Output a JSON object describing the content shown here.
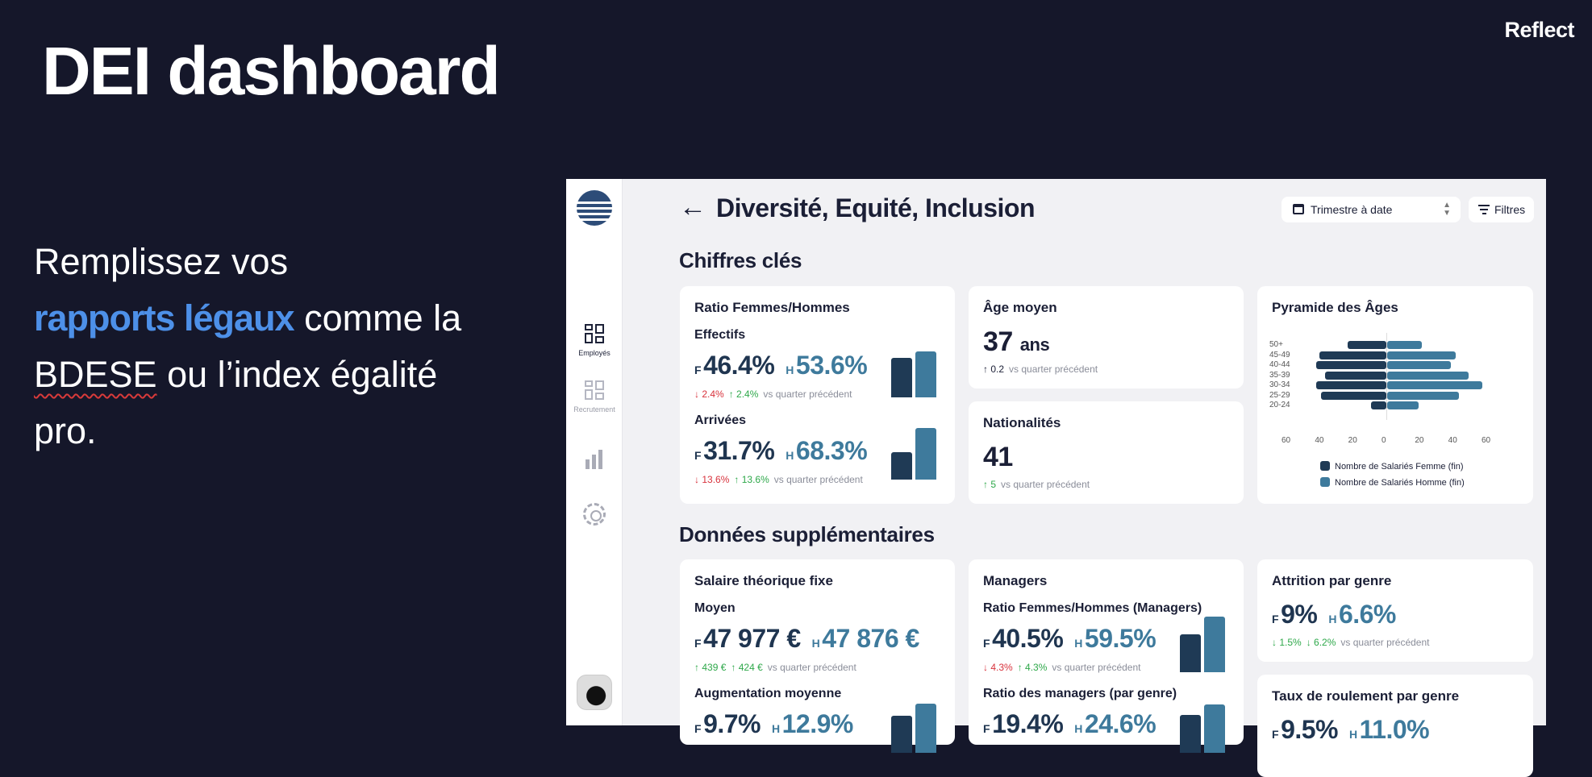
{
  "slide": {
    "title": "DEI dashboard",
    "brand": "Reflect",
    "pitch": {
      "line1": "Remplissez vos",
      "highlight": "rapports légaux",
      "after_highlight": " comme la",
      "squiggle": "BDESE",
      "after_squiggle": " ou l’index égalité",
      "line4": "pro."
    }
  },
  "sidebar": {
    "items": [
      {
        "label": "Employés",
        "icon": "dashboard-grid-icon",
        "active": true
      },
      {
        "label": "Recrutement",
        "icon": "dashboard-grid-icon",
        "active": false
      },
      {
        "label": "",
        "icon": "bar-chart-icon",
        "active": false
      },
      {
        "label": "",
        "icon": "gear-icon",
        "active": false
      }
    ]
  },
  "header": {
    "back_icon": "←",
    "title": "Diversité, Equité, Inclusion",
    "period_select": "Trimestre à date",
    "filters_label": "Filtres"
  },
  "sections": {
    "key_figures": "Chiffres clés",
    "additional": "Données supplémentaires"
  },
  "ratio": {
    "title": "Ratio Femmes/Hommes",
    "effectifs": {
      "label": "Effectifs",
      "f": "46.4%",
      "h": "53.6%",
      "f_change": "2.4%",
      "h_change": "2.4%",
      "f_share": 46.4,
      "h_share": 53.6
    },
    "arrivees": {
      "label": "Arrivées",
      "f": "31.7%",
      "h": "68.3%",
      "f_change": "13.6%",
      "h_change": "13.6%",
      "f_share": 31.7,
      "h_share": 68.3
    }
  },
  "vs_label": "vs quarter précédent",
  "prefix_f": "F",
  "prefix_h": "H",
  "age": {
    "title": "Âge moyen",
    "value": "37",
    "unit": "ans",
    "change": "0.2"
  },
  "nationalities": {
    "title": "Nationalités",
    "value": "41",
    "change": "5"
  },
  "pyramid": {
    "title": "Pyramide des Âges",
    "legend_f": "Nombre de Salariés Femme (fin)",
    "legend_h": "Nombre de Salariés Homme (fin)",
    "ticks": [
      "60",
      "40",
      "20",
      "0",
      "20",
      "40",
      "60"
    ]
  },
  "chart_data": {
    "type": "bar",
    "orientation": "horizontal-butterfly",
    "title": "Pyramide des Âges",
    "categories": [
      "50+",
      "45-49",
      "40-44",
      "35-39",
      "30-34",
      "25-29",
      "20-24"
    ],
    "series": [
      {
        "name": "Nombre de Salariés Femme (fin)",
        "values": [
          23,
          40,
          42,
          37,
          42,
          39,
          9
        ]
      },
      {
        "name": "Nombre de Salariés Homme (fin)",
        "values": [
          21,
          41,
          38,
          49,
          57,
          43,
          19
        ]
      }
    ],
    "xlim": [
      -60,
      60
    ],
    "legend": "bottom",
    "colors": {
      "femme": "#1f3a55",
      "homme": "#3e7a9c"
    }
  },
  "salary": {
    "title": "Salaire théorique fixe",
    "moyen": {
      "label": "Moyen",
      "f": "47 977 €",
      "h": "47 876 €",
      "f_change": "439 €",
      "h_change": "424 €"
    },
    "augmentation": {
      "label": "Augmentation moyenne",
      "f": "9.7%",
      "h": "12.9%",
      "f_share": 43,
      "h_share": 57
    }
  },
  "managers": {
    "title": "Managers",
    "ratio": {
      "label": "Ratio Femmes/Hommes (Managers)",
      "f": "40.5%",
      "h": "59.5%",
      "f_change": "4.3%",
      "h_change": "4.3%",
      "f_share": 40.5,
      "h_share": 59.5
    },
    "by_gender": {
      "label": "Ratio des managers (par genre)",
      "f": "19.4%",
      "h": "24.6%",
      "f_share": 44,
      "h_share": 56
    }
  },
  "attrition": {
    "title": "Attrition par genre",
    "f": "9%",
    "h": "6.6%",
    "f_change": "1.5%",
    "h_change": "6.2%"
  },
  "turnover": {
    "title": "Taux de roulement par genre",
    "f": "9.5%",
    "h": "11.0%"
  }
}
